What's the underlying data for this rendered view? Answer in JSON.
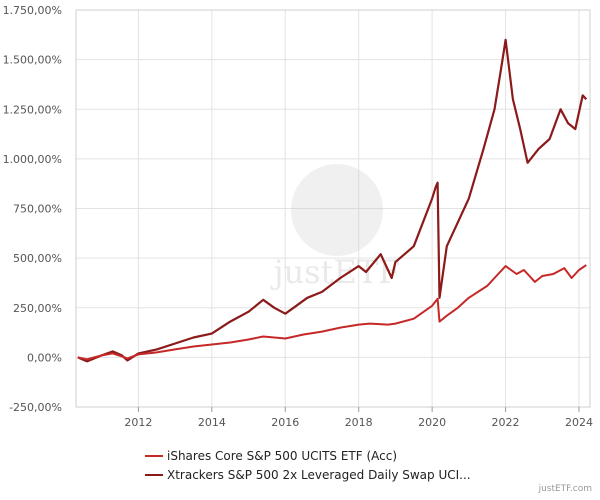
{
  "chart_data": {
    "type": "line",
    "title": "",
    "xlabel": "",
    "ylabel": "",
    "xlim": [
      2010.3,
      2024.3
    ],
    "ylim": [
      -250,
      1750
    ],
    "grid": true,
    "legend_position": "bottom",
    "y_ticks": [
      -250,
      0,
      250,
      500,
      750,
      1000,
      1250,
      1500,
      1750
    ],
    "y_tick_labels": [
      "-250,00%",
      "0,00%",
      "250,00%",
      "500,00%",
      "750,00%",
      "1.000,00%",
      "1.250,00%",
      "1.500,00%",
      "1.750,00%"
    ],
    "x_ticks": [
      2012,
      2014,
      2016,
      2018,
      2020,
      2022,
      2024
    ],
    "x_tick_labels": [
      "2012",
      "2014",
      "2016",
      "2018",
      "2020",
      "2022",
      "2024"
    ],
    "series": [
      {
        "name": "iShares Core S&P 500 UCITS ETF (Acc)",
        "color": "#c62828",
        "points": [
          [
            2010.35,
            0
          ],
          [
            2010.6,
            -10
          ],
          [
            2011.0,
            10
          ],
          [
            2011.3,
            20
          ],
          [
            2011.55,
            5
          ],
          [
            2011.7,
            -5
          ],
          [
            2012.0,
            15
          ],
          [
            2012.5,
            25
          ],
          [
            2013.0,
            40
          ],
          [
            2013.5,
            55
          ],
          [
            2014.0,
            65
          ],
          [
            2014.5,
            75
          ],
          [
            2015.0,
            90
          ],
          [
            2015.4,
            105
          ],
          [
            2015.7,
            100
          ],
          [
            2016.0,
            95
          ],
          [
            2016.5,
            115
          ],
          [
            2017.0,
            130
          ],
          [
            2017.5,
            150
          ],
          [
            2018.0,
            165
          ],
          [
            2018.3,
            170
          ],
          [
            2018.8,
            165
          ],
          [
            2019.0,
            170
          ],
          [
            2019.5,
            195
          ],
          [
            2020.0,
            260
          ],
          [
            2020.15,
            295
          ],
          [
            2020.2,
            180
          ],
          [
            2020.4,
            210
          ],
          [
            2020.7,
            250
          ],
          [
            2021.0,
            300
          ],
          [
            2021.5,
            360
          ],
          [
            2021.8,
            420
          ],
          [
            2022.0,
            460
          ],
          [
            2022.3,
            420
          ],
          [
            2022.5,
            440
          ],
          [
            2022.8,
            380
          ],
          [
            2023.0,
            410
          ],
          [
            2023.3,
            420
          ],
          [
            2023.6,
            450
          ],
          [
            2023.8,
            400
          ],
          [
            2024.0,
            440
          ],
          [
            2024.2,
            465
          ]
        ]
      },
      {
        "name": "Xtrackers S&P 500 2x Leveraged Daily Swap UCI...",
        "color": "#8b1a1a",
        "points": [
          [
            2010.35,
            0
          ],
          [
            2010.6,
            -20
          ],
          [
            2011.0,
            10
          ],
          [
            2011.3,
            30
          ],
          [
            2011.55,
            10
          ],
          [
            2011.7,
            -15
          ],
          [
            2012.0,
            20
          ],
          [
            2012.5,
            40
          ],
          [
            2013.0,
            70
          ],
          [
            2013.5,
            100
          ],
          [
            2014.0,
            120
          ],
          [
            2014.5,
            180
          ],
          [
            2015.0,
            230
          ],
          [
            2015.4,
            290
          ],
          [
            2015.7,
            250
          ],
          [
            2016.0,
            220
          ],
          [
            2016.3,
            260
          ],
          [
            2016.6,
            300
          ],
          [
            2017.0,
            330
          ],
          [
            2017.5,
            400
          ],
          [
            2018.0,
            460
          ],
          [
            2018.2,
            430
          ],
          [
            2018.6,
            520
          ],
          [
            2018.9,
            400
          ],
          [
            2019.0,
            480
          ],
          [
            2019.5,
            560
          ],
          [
            2020.0,
            800
          ],
          [
            2020.1,
            860
          ],
          [
            2020.15,
            880
          ],
          [
            2020.2,
            300
          ],
          [
            2020.4,
            560
          ],
          [
            2020.7,
            680
          ],
          [
            2021.0,
            800
          ],
          [
            2021.4,
            1050
          ],
          [
            2021.7,
            1250
          ],
          [
            2021.9,
            1480
          ],
          [
            2022.0,
            1600
          ],
          [
            2022.2,
            1300
          ],
          [
            2022.4,
            1150
          ],
          [
            2022.6,
            980
          ],
          [
            2022.9,
            1050
          ],
          [
            2023.2,
            1100
          ],
          [
            2023.5,
            1250
          ],
          [
            2023.7,
            1180
          ],
          [
            2023.9,
            1150
          ],
          [
            2024.1,
            1320
          ],
          [
            2024.2,
            1300
          ]
        ]
      }
    ]
  },
  "legend": {
    "items": [
      {
        "label": "iShares Core S&P 500 UCITS ETF (Acc)",
        "color": "#c62828"
      },
      {
        "label": "Xtrackers S&P 500 2x Leveraged Daily Swap UCI...",
        "color": "#8b1a1a"
      }
    ]
  },
  "watermark": {
    "text": "justETF"
  },
  "footer": {
    "credit": "justETF.com"
  }
}
